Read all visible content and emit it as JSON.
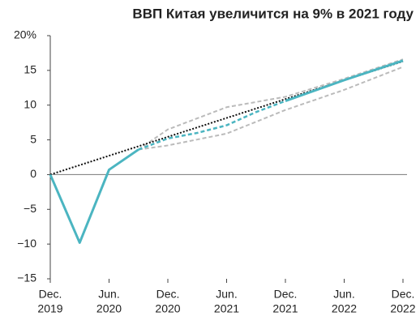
{
  "chart_data": {
    "type": "line",
    "title": "ВВП Китая увеличится на 9% в 2021 году",
    "xlim": [
      0,
      36
    ],
    "xticks": [
      {
        "value": 0,
        "label": [
          "Dec.",
          "2019"
        ]
      },
      {
        "value": 6,
        "label": [
          "Jun.",
          "2020"
        ]
      },
      {
        "value": 12,
        "label": [
          "Dec.",
          "2020"
        ]
      },
      {
        "value": 18,
        "label": [
          "Jun.",
          "2021"
        ]
      },
      {
        "value": 24,
        "label": [
          "Dec.",
          "2021"
        ]
      },
      {
        "value": 30,
        "label": [
          "Jun.",
          "2022"
        ]
      },
      {
        "value": 36,
        "label": [
          "Dec.",
          "2022"
        ]
      }
    ],
    "ylim": [
      -15,
      20
    ],
    "yticks": [
      {
        "value": -15,
        "label": "−15"
      },
      {
        "value": -10,
        "label": "−10"
      },
      {
        "value": -5,
        "label": "−5"
      },
      0,
      5,
      10,
      15,
      {
        "value": 20,
        "label": "20%"
      }
    ],
    "grid": false,
    "series": [
      {
        "color": "#bbbbbb",
        "dash": "dashed",
        "x": [
          9,
          12,
          18,
          24,
          30,
          36
        ],
        "values": [
          3.6,
          6.5,
          9.7,
          11.2,
          13.8,
          16.6
        ]
      },
      {
        "color": "#bbbbbb",
        "dash": "dashed",
        "x": [
          9,
          12,
          18,
          24,
          30,
          36
        ],
        "values": [
          3.6,
          4.2,
          5.9,
          9.3,
          12.2,
          15.5
        ]
      },
      {
        "color": "#111111",
        "dash": "dotted",
        "x": [
          0,
          36
        ],
        "values": [
          0,
          16.3
        ]
      },
      {
        "color": "#4bb5c1",
        "dash": "dashed",
        "x": [
          9,
          12,
          15,
          18,
          21,
          24
        ],
        "values": [
          3.6,
          5.2,
          6,
          7.1,
          9,
          10.6
        ]
      },
      {
        "color": "#4bb5c1",
        "dash": "solid",
        "x": [
          24,
          30,
          36
        ],
        "values": [
          10.6,
          13.6,
          16.4
        ]
      },
      {
        "color": "#4bb5c1",
        "dash": "solid",
        "x": [
          0,
          3,
          6,
          9
        ],
        "values": [
          0,
          -9.8,
          0.7,
          3.6
        ]
      }
    ]
  }
}
